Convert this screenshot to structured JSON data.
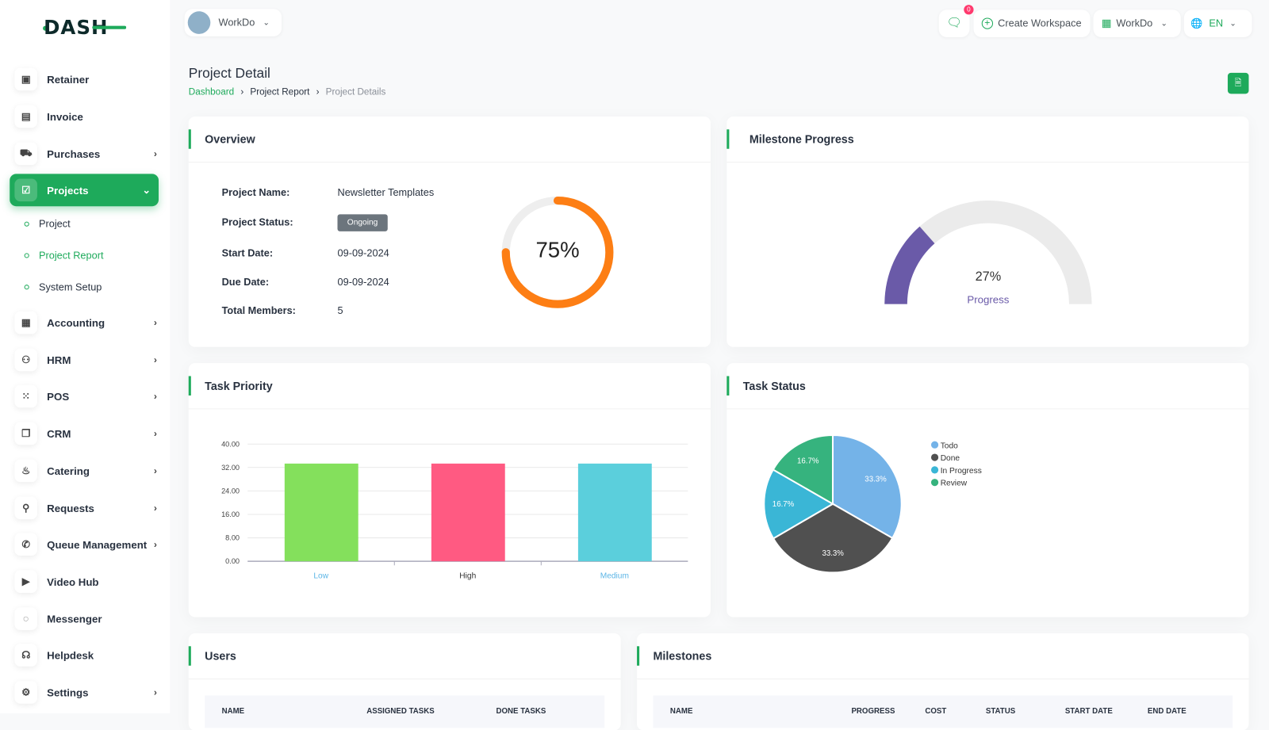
{
  "brand": {
    "logo": "DASH"
  },
  "header": {
    "workspace": "WorkDo",
    "notif_count": "0",
    "create_workspace": "Create Workspace",
    "company": "WorkDo",
    "lang": "EN"
  },
  "page": {
    "title": "Project Detail",
    "breadcrumb": [
      "Dashboard",
      "Project Report",
      "Project Details"
    ]
  },
  "sidebar": {
    "items": [
      {
        "label": "Retainer",
        "icon": "save-icon",
        "chev": false
      },
      {
        "label": "Invoice",
        "icon": "file-icon",
        "chev": false
      },
      {
        "label": "Purchases",
        "icon": "cart-icon",
        "chev": true
      },
      {
        "label": "Projects",
        "icon": "check-square-icon",
        "chev": true,
        "active": true
      },
      {
        "label": "Accounting",
        "icon": "grid-icon",
        "chev": true
      },
      {
        "label": "HRM",
        "icon": "users-icon",
        "chev": true
      },
      {
        "label": "POS",
        "icon": "dots-grid-icon",
        "chev": true
      },
      {
        "label": "CRM",
        "icon": "layers-icon",
        "chev": true
      },
      {
        "label": "Catering",
        "icon": "chef-icon",
        "chev": true
      },
      {
        "label": "Requests",
        "icon": "user-plus-icon",
        "chev": true
      },
      {
        "label": "Queue Management",
        "icon": "phone-icon",
        "chev": true
      },
      {
        "label": "Video Hub",
        "icon": "video-icon",
        "chev": false
      },
      {
        "label": "Messenger",
        "icon": "message-icon",
        "chev": false
      },
      {
        "label": "Helpdesk",
        "icon": "headphones-icon",
        "chev": false
      },
      {
        "label": "Settings",
        "icon": "gear-icon",
        "chev": true
      }
    ],
    "sub": [
      {
        "label": "Project"
      },
      {
        "label": "Project Report",
        "active": true
      },
      {
        "label": "System Setup"
      }
    ]
  },
  "overview": {
    "title": "Overview",
    "fields": [
      {
        "label": "Project Name:",
        "value": "Newsletter Templates"
      },
      {
        "label": "Project Status:",
        "value": "Ongoing"
      },
      {
        "label": "Start Date:",
        "value": "09-09-2024"
      },
      {
        "label": "Due Date:",
        "value": "09-09-2024"
      },
      {
        "label": "Total Members:",
        "value": "5"
      }
    ],
    "progress_text": "75%",
    "progress": 75,
    "color": "#fd7e14"
  },
  "milestone": {
    "title": "Milestone Progress",
    "value_text": "27%",
    "label": "Progress",
    "progress": 27,
    "color": "#6a5aa8"
  },
  "task_priority": {
    "title": "Task Priority"
  },
  "task_status": {
    "title": "Task Status"
  },
  "chart_data": [
    {
      "type": "bar",
      "categories": [
        "Low",
        "High",
        "Medium"
      ],
      "values": [
        33.33,
        33.33,
        33.33
      ],
      "colors": [
        "#84e05c",
        "#ff5a82",
        "#5bcfdc"
      ],
      "ylim": [
        0,
        40
      ],
      "yticks": [
        "0.00",
        "8.00",
        "16.00",
        "24.00",
        "32.00",
        "40.00"
      ],
      "grid": true
    },
    {
      "type": "pie",
      "labels": [
        "Todo",
        "Done",
        "In Progress",
        "Review"
      ],
      "values": [
        33.3,
        33.3,
        16.7,
        16.7
      ],
      "value_labels": [
        "33.3%",
        "33.3%",
        "16.7%",
        "16.7%"
      ],
      "colors": [
        "#74b3e8",
        "#505050",
        "#3ab6d6",
        "#36b37e"
      ],
      "legend": "right"
    }
  ],
  "users": {
    "title": "Users",
    "columns": [
      "NAME",
      "ASSIGNED TASKS",
      "DONE TASKS"
    ]
  },
  "milestones": {
    "title": "Milestones",
    "columns": [
      "NAME",
      "PROGRESS",
      "COST",
      "STATUS",
      "START DATE",
      "END DATE"
    ]
  }
}
